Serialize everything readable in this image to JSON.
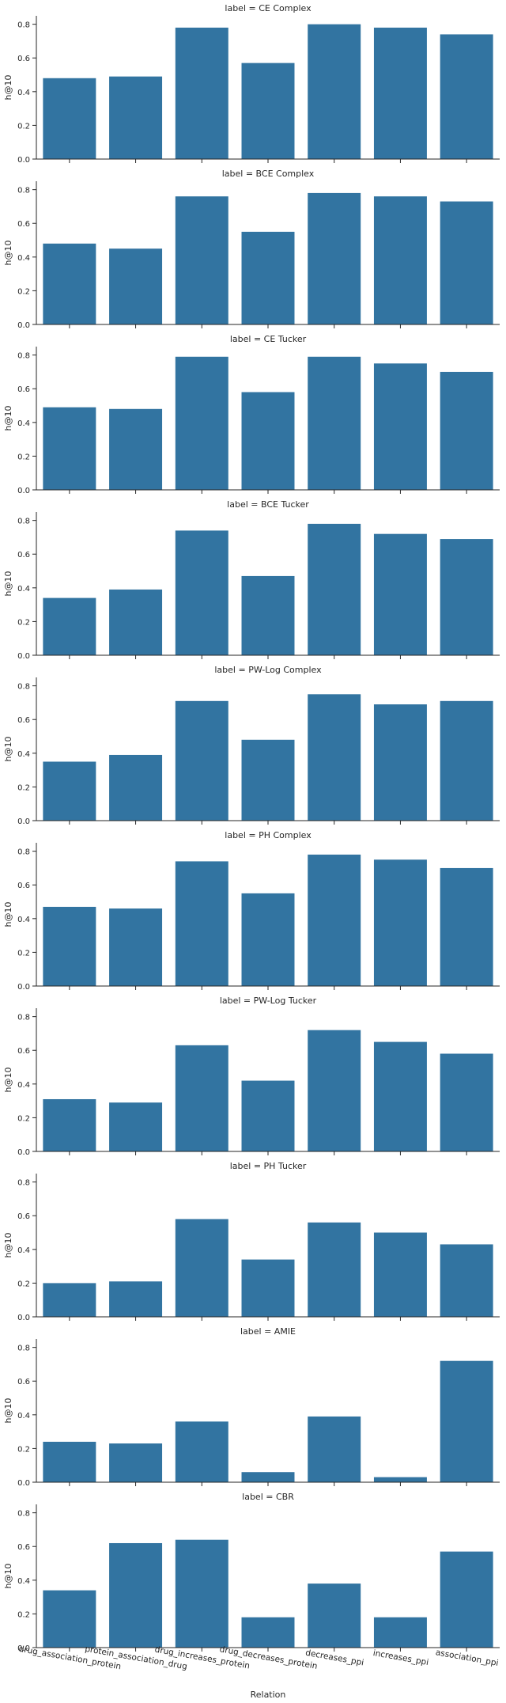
{
  "chart_data": {
    "type": "bar",
    "facet_prefix": "label = ",
    "xlabel": "Relation",
    "ylabel": "h@10",
    "ylim": [
      0,
      0.85
    ],
    "yticks": [
      0.0,
      0.2,
      0.4,
      0.6,
      0.8
    ],
    "ytick_labels": [
      "0.0",
      "0.2",
      "0.4",
      "0.6",
      "0.8"
    ],
    "bar_color": "#3274a1",
    "categories": [
      "drug_association_protein",
      "protein_association_drug",
      "drug_increases_protein",
      "drug_decreases_protein",
      "decreases_ppi",
      "increases_ppi",
      "association_ppi"
    ],
    "panels": [
      {
        "label": "CE Complex",
        "values": [
          0.48,
          0.49,
          0.78,
          0.57,
          0.8,
          0.78,
          0.74
        ]
      },
      {
        "label": "BCE Complex",
        "values": [
          0.48,
          0.45,
          0.76,
          0.55,
          0.78,
          0.76,
          0.73
        ]
      },
      {
        "label": "CE Tucker",
        "values": [
          0.49,
          0.48,
          0.79,
          0.58,
          0.79,
          0.75,
          0.7
        ]
      },
      {
        "label": "BCE Tucker",
        "values": [
          0.34,
          0.39,
          0.74,
          0.47,
          0.78,
          0.72,
          0.69
        ]
      },
      {
        "label": "PW-Log Complex",
        "values": [
          0.35,
          0.39,
          0.71,
          0.48,
          0.75,
          0.69,
          0.71
        ]
      },
      {
        "label": "PH Complex",
        "values": [
          0.47,
          0.46,
          0.74,
          0.55,
          0.78,
          0.75,
          0.7
        ]
      },
      {
        "label": "PW-Log Tucker",
        "values": [
          0.31,
          0.29,
          0.63,
          0.42,
          0.72,
          0.65,
          0.58
        ]
      },
      {
        "label": "PH Tucker",
        "values": [
          0.2,
          0.21,
          0.58,
          0.34,
          0.56,
          0.5,
          0.43
        ]
      },
      {
        "label": "AMIE",
        "values": [
          0.24,
          0.23,
          0.36,
          0.06,
          0.39,
          0.03,
          0.72
        ]
      },
      {
        "label": "CBR",
        "values": [
          0.34,
          0.62,
          0.64,
          0.18,
          0.38,
          0.18,
          0.57
        ]
      }
    ]
  }
}
